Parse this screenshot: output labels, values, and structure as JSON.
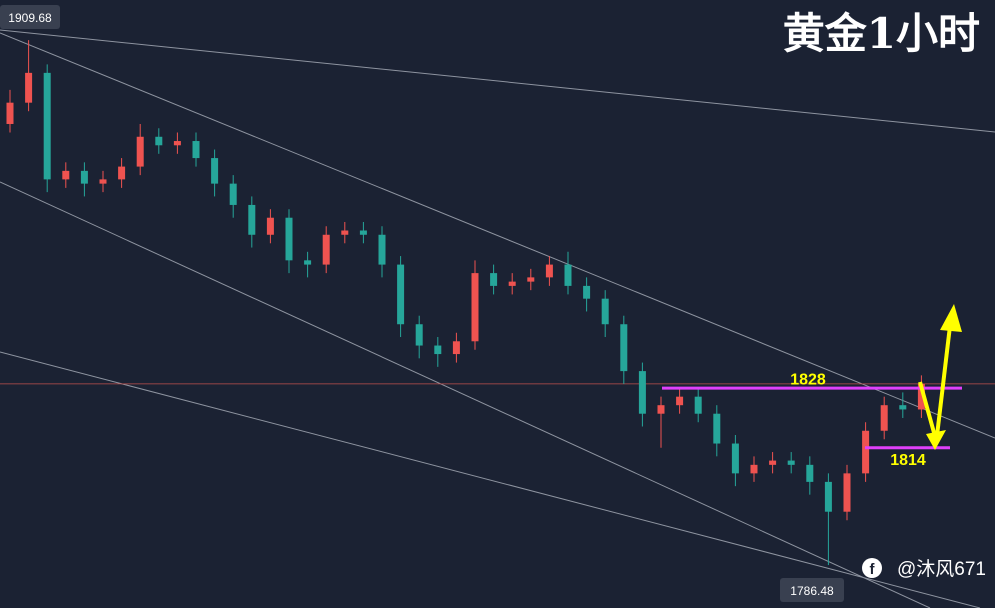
{
  "chart_data": {
    "type": "candlestick",
    "title": "黄金1小时",
    "watermark": "@沐风671",
    "up_color": "#ef5350",
    "down_color": "#26a69a",
    "ylim": [
      1776.4,
      1919.1
    ],
    "open": [
      1890,
      1895,
      1902,
      1877,
      1879,
      1876,
      1877,
      1880,
      1887,
      1885,
      1886,
      1882,
      1876,
      1871,
      1864,
      1868,
      1858,
      1857,
      1864,
      1865,
      1864,
      1857,
      1843,
      1838,
      1836,
      1839,
      1855,
      1852,
      1853,
      1854,
      1857,
      1852,
      1849,
      1843,
      1832,
      1822,
      1824,
      1826,
      1822,
      1815,
      1808,
      1810,
      1811,
      1810,
      1806,
      1799,
      1808,
      1818,
      1824,
      1823
    ],
    "high": [
      1898,
      1909.68,
      1904,
      1881,
      1881,
      1879,
      1882,
      1890,
      1889,
      1888,
      1888,
      1884,
      1878,
      1873,
      1870,
      1870,
      1860,
      1866,
      1867,
      1867,
      1866,
      1859,
      1845,
      1840,
      1841,
      1858,
      1857,
      1855,
      1856,
      1859,
      1860,
      1854,
      1851,
      1845,
      1834,
      1826,
      1828,
      1828,
      1824,
      1817,
      1812,
      1813,
      1813,
      1812,
      1808,
      1810,
      1820,
      1826,
      1827,
      1831
    ],
    "low": [
      1888,
      1893,
      1874,
      1875,
      1873,
      1874,
      1875,
      1878,
      1883,
      1883,
      1880,
      1873,
      1868,
      1861,
      1862,
      1855,
      1854,
      1855,
      1862,
      1862,
      1854,
      1840,
      1835,
      1833,
      1834,
      1837,
      1850,
      1850,
      1851,
      1852,
      1850,
      1846,
      1840,
      1829,
      1819,
      1814,
      1822,
      1820,
      1812,
      1805,
      1806,
      1808,
      1808,
      1803,
      1786.48,
      1797,
      1806,
      1816,
      1821,
      1821
    ],
    "close": [
      1895,
      1902,
      1877,
      1879,
      1876,
      1877,
      1880,
      1887,
      1885,
      1886,
      1882,
      1876,
      1871,
      1864,
      1868,
      1858,
      1857,
      1864,
      1865,
      1864,
      1857,
      1843,
      1838,
      1836,
      1839,
      1855,
      1852,
      1853,
      1854,
      1857,
      1852,
      1849,
      1843,
      1832,
      1822,
      1824,
      1826,
      1822,
      1815,
      1808,
      1810,
      1811,
      1810,
      1806,
      1799,
      1808,
      1818,
      1824,
      1823,
      1829
    ],
    "last_price": 1829,
    "levels": [
      1828,
      1814
    ],
    "high_label": 1909.68,
    "low_label": 1786.48
  }
}
